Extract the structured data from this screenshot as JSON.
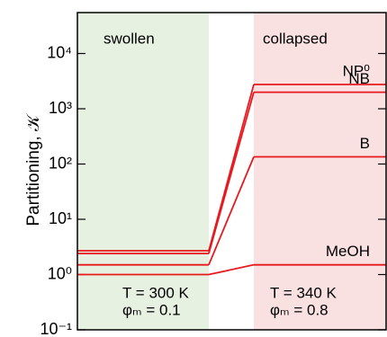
{
  "chart_data": {
    "type": "line",
    "y_label": "Partitioning, 𝒦",
    "categories": [
      "swollen",
      "collapsed"
    ],
    "region_colors": [
      "#e7f1e2",
      "#f9e1e1"
    ],
    "log_y": true,
    "ylim": [
      0.1,
      55000
    ],
    "yticks": [
      {
        "value": 0.1,
        "label": "10⁻¹"
      },
      {
        "value": 1,
        "label": "10⁰"
      },
      {
        "value": 10,
        "label": "10¹"
      },
      {
        "value": 100,
        "label": "10²"
      },
      {
        "value": 1000,
        "label": "10³"
      },
      {
        "value": 10000,
        "label": "10⁴"
      }
    ],
    "series": [
      {
        "name": "NP⁰",
        "color": "#e8191e",
        "values": [
          2.7,
          2750
        ]
      },
      {
        "name": "NB",
        "color": "#e8191e",
        "values": [
          2.4,
          1990
        ]
      },
      {
        "name": "B",
        "color": "#e8191e",
        "values": [
          1.5,
          135
        ]
      },
      {
        "name": "MeOH",
        "color": "#e8191e",
        "values": [
          1.0,
          1.5
        ]
      }
    ],
    "annotations": [
      [
        "T = 300 K",
        "φₘ = 0.1"
      ],
      [
        "T = 340 K",
        "φₘ = 0.8"
      ]
    ]
  }
}
